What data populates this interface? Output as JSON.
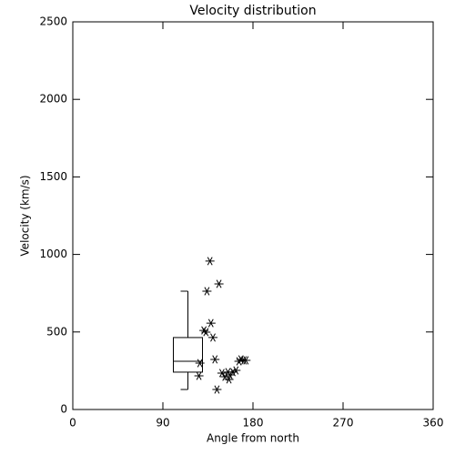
{
  "chart_data": {
    "type": "scatter",
    "title": "Velocity distribution",
    "x_label": "Angle from north",
    "y_label": "Velocity (km/s)",
    "xlim": [
      0,
      360
    ],
    "xticks": [
      0,
      90,
      180,
      270,
      360
    ],
    "ylim": [
      0,
      2500
    ],
    "yticks": [
      0,
      500,
      1000,
      1500,
      2000,
      2500
    ],
    "color": "#000000",
    "x": [
      137,
      146,
      134,
      138,
      131,
      133,
      140,
      127,
      126,
      142,
      144,
      149,
      152,
      155,
      157,
      160,
      163,
      166,
      171,
      173,
      168,
      156
    ],
    "values": [
      957,
      810,
      763,
      557,
      510,
      499,
      464,
      299,
      217,
      323,
      129,
      235,
      211,
      241,
      223,
      241,
      252,
      311,
      317,
      317,
      323,
      194
    ],
    "box": {
      "position": 115,
      "whisker_low": 129,
      "q1": 241,
      "median": 311,
      "q3": 464,
      "whisker_high": 763
    }
  }
}
